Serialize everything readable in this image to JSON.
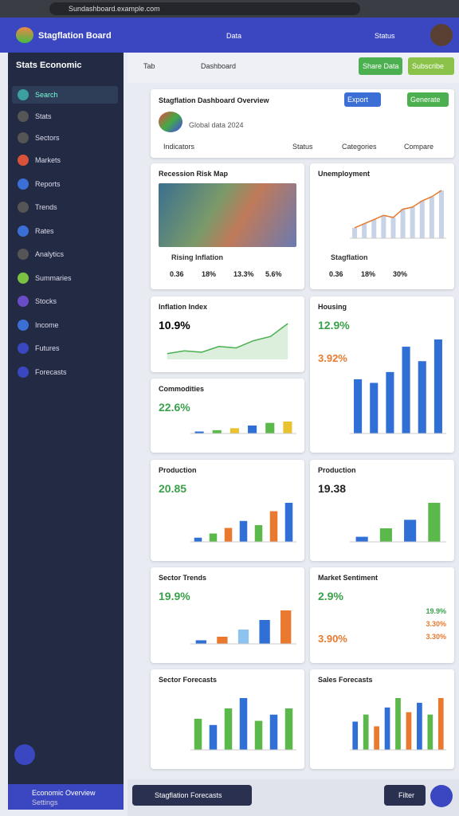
{
  "browser": {
    "url": "Sundashboard.example.com"
  },
  "app": {
    "brand": "Stagflation Board",
    "header_items": [
      "Data",
      "Status"
    ]
  },
  "sidebar": {
    "title": "Stats Economic",
    "items": [
      "Search",
      "Stats",
      "Sectors",
      "Markets",
      "Reports",
      "Trends",
      "Rates",
      "Analytics",
      "Summaries",
      "Stocks",
      "Income",
      "Futures",
      "Forecasts"
    ],
    "footer": "Economic Overview",
    "footer_sub": "Settings"
  },
  "toolbar": {
    "tabs": [
      "Tab",
      "Dashboard"
    ],
    "buttons": [
      "Share Data",
      "Subscribe"
    ]
  },
  "summary": {
    "title": "Stagflation Dashboard Overview",
    "buttons": [
      "Export",
      "Generate"
    ],
    "subtitle": "Global data 2024",
    "filters": [
      "Indicators",
      "Status",
      "Categories",
      "Compare"
    ]
  },
  "cards": [
    {
      "title": "Recession Risk Map",
      "type": "map",
      "footer": "Rising Inflation",
      "stats": [
        "0.36",
        "18%",
        "13.3%",
        "5.6%"
      ]
    },
    {
      "title": "Unemployment",
      "type": "bar",
      "line": true,
      "values": [
        10,
        14,
        18,
        22,
        20,
        28,
        30,
        36,
        40,
        46
      ],
      "colors": [
        "#c9d3e8"
      ],
      "footer": "Stagflation",
      "stats": [
        "0.36",
        "18%",
        "30%"
      ]
    },
    {
      "title": "Inflation Index",
      "type": "line",
      "values": [
        8,
        12,
        10,
        18,
        16,
        26,
        32,
        50
      ],
      "colors": [
        "#4caf50"
      ],
      "value": "10.9%"
    },
    {
      "title": "Housing",
      "type": "bar",
      "value": "12.9%",
      "value_color": "#3aa04a",
      "value2": "3.92%",
      "value2_color": "#e8792f",
      "values": [
        30,
        28,
        34,
        48,
        40,
        52
      ],
      "colors": [
        "#2f6fd6"
      ]
    },
    {
      "title": "Commodities",
      "type": "bar",
      "value": "22.6%",
      "value_color": "#3aa04a",
      "values": [
        6,
        10,
        16,
        24,
        32,
        36
      ],
      "colors": [
        "#2f6fd6",
        "#5bb84a",
        "#e8c22f"
      ]
    },
    {
      "title": "Production",
      "type": "bar",
      "value": "20.85",
      "value_color": "#3aa04a",
      "values": [
        6,
        12,
        20,
        30,
        24,
        44,
        56
      ],
      "colors": [
        "#2f6fd6",
        "#5bb84a",
        "#e8792f"
      ]
    },
    {
      "title": "Production",
      "type": "bar",
      "value": "19.38",
      "value_color": "#222222",
      "values": [
        6,
        16,
        26,
        46
      ],
      "colors": [
        "#2f6fd6",
        "#5bb84a"
      ]
    },
    {
      "title": "Sector Trends",
      "type": "bar",
      "value": "19.9%",
      "value_color": "#3aa04a",
      "values": [
        6,
        12,
        24,
        40,
        56
      ],
      "colors": [
        "#2f6fd6",
        "#e8792f",
        "#8ec3f0"
      ]
    },
    {
      "title": "Market Sentiment",
      "type": "list",
      "value": "2.9%",
      "value_color": "#3aa04a",
      "value2": "3.90%",
      "value2_color": "#e8792f",
      "stats": [
        "19.9%",
        "3.30%",
        "3.30%"
      ]
    },
    {
      "title": "Sector Forecasts",
      "type": "bar",
      "values": [
        30,
        24,
        40,
        50,
        28,
        34,
        40
      ],
      "colors": [
        "#5bb84a",
        "#2f6fd6"
      ]
    },
    {
      "title": "Sales Forecasts",
      "type": "bar",
      "values": [
        24,
        30,
        20,
        36,
        44,
        32,
        40,
        30,
        44
      ],
      "colors": [
        "#2f6fd6",
        "#5bb84a",
        "#e8792f"
      ]
    }
  ],
  "bottom": {
    "search": "Stagflation Forecasts",
    "button": "Filter"
  }
}
